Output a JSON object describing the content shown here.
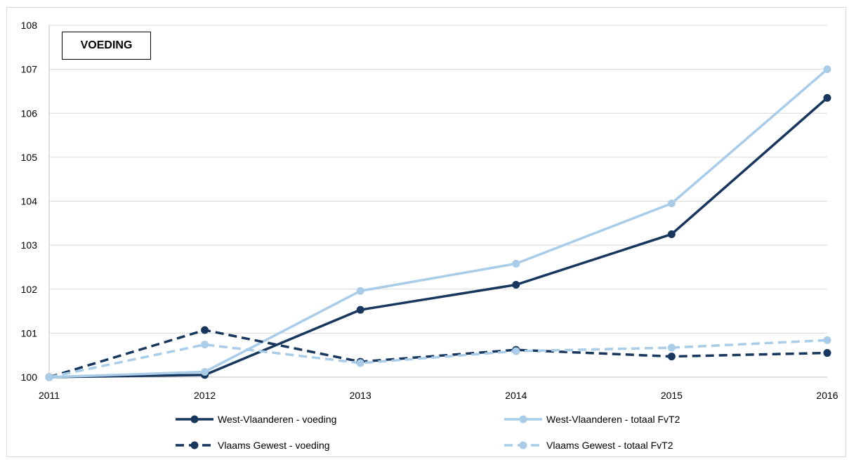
{
  "chart_data": {
    "type": "line",
    "title": "VOEDING",
    "x": [
      "2011",
      "2012",
      "2013",
      "2014",
      "2015",
      "2016"
    ],
    "ylim": [
      100,
      108
    ],
    "yticks": [
      "100",
      "101",
      "102",
      "103",
      "104",
      "105",
      "106",
      "107",
      "108"
    ],
    "grid": "horizontal",
    "legend": "bottom",
    "series": [
      {
        "name": "West-Vlaanderen - voeding",
        "values": [
          100,
          100.05,
          101.53,
          102.1,
          103.25,
          106.35
        ],
        "color": "#17375e",
        "dash": false
      },
      {
        "name": "West-Vlaanderen - totaal FvT2",
        "values": [
          100,
          100.12,
          101.96,
          102.58,
          103.95,
          107.0
        ],
        "color": "#a9cce9",
        "dash": false
      },
      {
        "name": "Vlaams Gewest - voeding",
        "values": [
          100,
          101.07,
          100.35,
          100.62,
          100.47,
          100.55
        ],
        "color": "#17375e",
        "dash": true
      },
      {
        "name": "Vlaams Gewest - totaal FvT2",
        "values": [
          100,
          100.74,
          100.32,
          100.59,
          100.67,
          100.84
        ],
        "color": "#a9cce9",
        "dash": true
      }
    ]
  }
}
